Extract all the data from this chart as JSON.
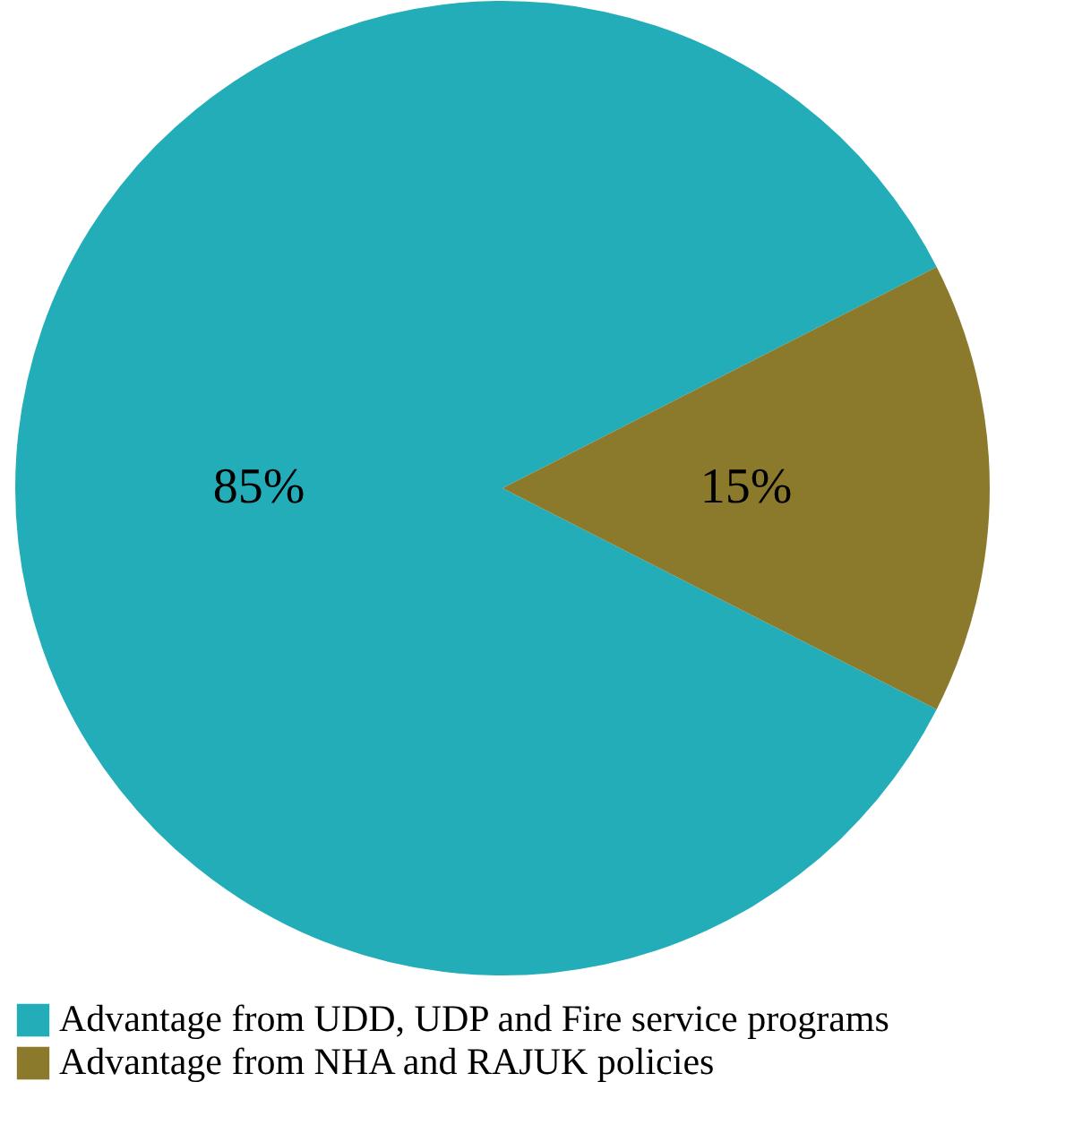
{
  "chart_data": {
    "type": "pie",
    "categories": [
      "Advantage from UDD, UDP and Fire service programs",
      "Advantage from NHA and RAJUK policies"
    ],
    "values": [
      85,
      15
    ],
    "colors": [
      "#22adb8",
      "#8c7a2c"
    ],
    "value_labels": [
      "85%",
      "15%"
    ],
    "legend": "bottom"
  }
}
